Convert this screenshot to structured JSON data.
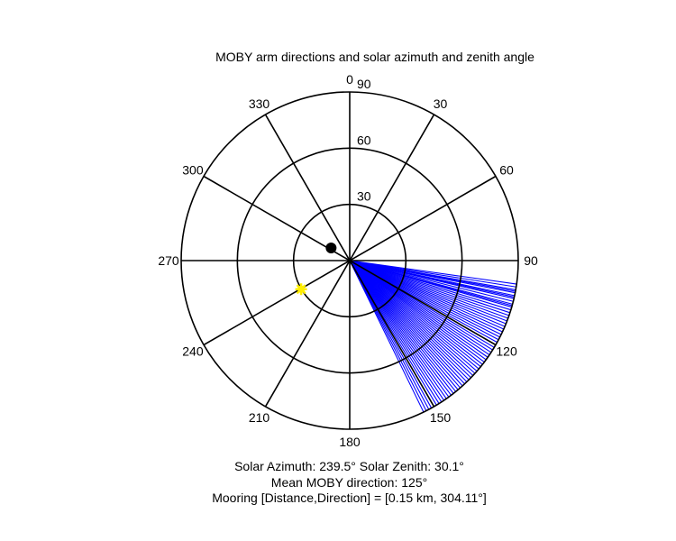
{
  "chart_data": {
    "type": "polar",
    "title": "MOBY arm directions and solar azimuth and zenith angle",
    "azimuth_ticks": [
      "0",
      "30",
      "60",
      "90",
      "120",
      "150",
      "180",
      "210",
      "240",
      "270",
      "300",
      "330"
    ],
    "radial_ticks": [
      "30",
      "60",
      "90"
    ],
    "r_max": 90,
    "azimuth_convention": "clockwise from north (top)",
    "series": [
      {
        "kind": "arm-direction-lines",
        "color": "#0000ff",
        "directions_deg": [
          98,
          99,
          100,
          100.5,
          101,
          102,
          102.5,
          103,
          104,
          105,
          105.5,
          106,
          107,
          108,
          109,
          110,
          111,
          112,
          113,
          114,
          115,
          116,
          117,
          118,
          119,
          120,
          121,
          122,
          123,
          124,
          125,
          126,
          127,
          128,
          129,
          130,
          131,
          132,
          133,
          134,
          135,
          136,
          137,
          138,
          139,
          140,
          141,
          142,
          143,
          144,
          145,
          146,
          147,
          148,
          149,
          150,
          151,
          152,
          153,
          154
        ],
        "radius": 90
      },
      {
        "kind": "sun-position",
        "color": "#ffee00",
        "azimuth_deg": 239.5,
        "zenith_deg": 30.1
      },
      {
        "kind": "mooring-position",
        "color": "#000000",
        "azimuth_deg": 304.11,
        "radius": 12
      }
    ],
    "captions": {
      "line1": "Solar Azimuth: 239.5°   Solar Zenith: 30.1°",
      "line2": "Mean MOBY direction: 125°",
      "line3": "Mooring [Distance,Direction] = [0.15 km, 304.11°]"
    }
  }
}
